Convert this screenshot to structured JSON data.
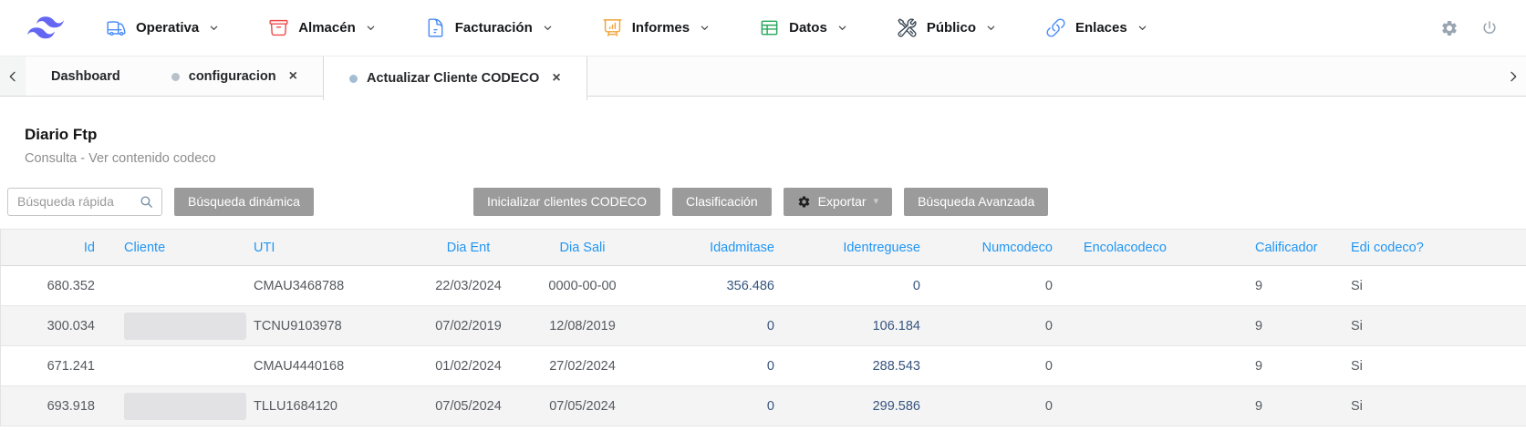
{
  "navbar": {
    "items": [
      {
        "label": "Operativa",
        "icon": "truck-icon",
        "icon_color": "#4a8cf7"
      },
      {
        "label": "Almacén",
        "icon": "archive-box-icon",
        "icon_color": "#ef4b4b"
      },
      {
        "label": "Facturación",
        "icon": "document-icon",
        "icon_color": "#4a8cf7"
      },
      {
        "label": "Informes",
        "icon": "presentation-chart-icon",
        "icon_color": "#f0a43a"
      },
      {
        "label": "Datos",
        "icon": "table-icon",
        "icon_color": "#27a75a"
      },
      {
        "label": "Público",
        "icon": "tools-icon",
        "icon_color": "#3e4c59"
      },
      {
        "label": "Enlaces",
        "icon": "link-icon",
        "icon_color": "#4a8cf7"
      }
    ]
  },
  "tabbar": {
    "close_glyph": "×",
    "tabs": [
      {
        "label": "Dashboard",
        "dot": false,
        "closable": false,
        "active": false
      },
      {
        "label": "configuracion",
        "dot": true,
        "dot_color": "#b8c1c9",
        "closable": true,
        "active": false
      },
      {
        "label": "Actualizar Cliente CODECO",
        "dot": true,
        "dot_color": "#a3bdd3",
        "closable": true,
        "active": true
      }
    ]
  },
  "page": {
    "title": "Diario Ftp",
    "subtitle": "Consulta - Ver contenido codeco"
  },
  "toolbar": {
    "search": {
      "placeholder": "Búsqueda rápida",
      "value": ""
    },
    "buttons": {
      "dynamic_search": "Búsqueda dinámica",
      "init_codeco": "Inicializar clientes CODECO",
      "classification": "Clasificación",
      "export": "Exportar",
      "advanced_search": "Búsqueda Avanzada"
    }
  },
  "table": {
    "columns": [
      "Id",
      "Cliente",
      "UTI",
      "Dia Ent",
      "Dia Sali",
      "Idadmitase",
      "Identreguese",
      "Numcodeco",
      "Encolacodeco",
      "Calificador",
      "Edi codeco?"
    ],
    "rows": [
      {
        "cells": [
          "680.352",
          "",
          "CMAU3468788",
          "22/03/2024",
          "0000-00-00",
          "356.486",
          "0",
          "0",
          "",
          "9",
          "Si"
        ],
        "cliente_redacted": false
      },
      {
        "cells": [
          "300.034",
          "",
          "TCNU9103978",
          "07/02/2019",
          "12/08/2019",
          "0",
          "106.184",
          "0",
          "",
          "9",
          "Si"
        ],
        "cliente_redacted": true
      },
      {
        "cells": [
          "671.241",
          "",
          "CMAU4440168",
          "01/02/2024",
          "27/02/2024",
          "0",
          "288.543",
          "0",
          "",
          "9",
          "Si"
        ],
        "cliente_redacted": false
      },
      {
        "cells": [
          "693.918",
          "",
          "TLLU1684120",
          "07/05/2024",
          "07/05/2024",
          "0",
          "299.586",
          "0",
          "",
          "9",
          "Si"
        ],
        "cliente_redacted": true
      }
    ]
  },
  "colors": {
    "header_text_blue": "#2196f3",
    "amount_navy": "#36547e",
    "button_gray": "#9b9b9b",
    "logo_indigo": "#6467f2"
  }
}
